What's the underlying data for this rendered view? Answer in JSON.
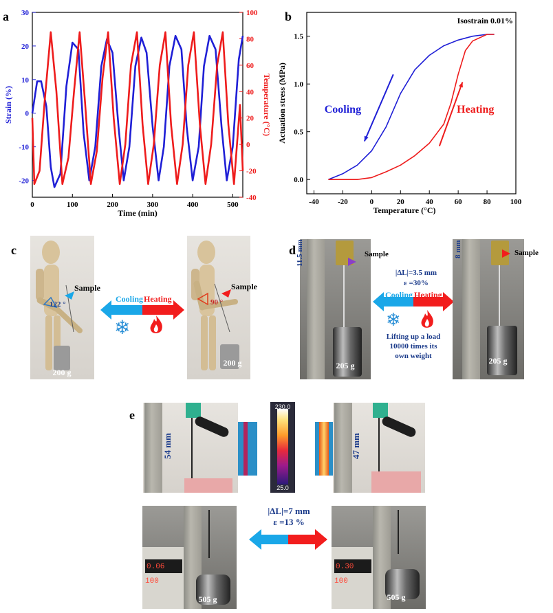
{
  "panels": {
    "a": {
      "label": "a"
    },
    "b": {
      "label": "b"
    },
    "c": {
      "label": "c",
      "sample": "Sample",
      "angle1": "122 °",
      "angle2": "90 °",
      "cooling": "Cooling",
      "heating": "Heating",
      "weight1": "200 g",
      "weight2": "200 g"
    },
    "d": {
      "label": "d",
      "sample1": "Sample",
      "sample2": "Sample",
      "length1": "11.5 mm",
      "length2": "8 mm",
      "delta": "|ΔL|=3.5 mm",
      "strain": "ε =30%",
      "cooling": "Cooling",
      "heating": "Heating",
      "note_line1": "Lifting up a load",
      "note_line2": "10000 times its",
      "note_line3": "own weight",
      "weight1": "205 g",
      "weight2": "205 g"
    },
    "e": {
      "label": "e",
      "length1": "54 mm",
      "length2": "47 mm",
      "scale_max": "230.0",
      "scale_min": "25.0",
      "delta": "|ΔL|=7 mm",
      "strain": "ε =13 %",
      "weight1": "505 g",
      "weight2": "505 g",
      "display1": "0.06 100",
      "display2": "0.30 100"
    }
  },
  "colors": {
    "blue": "#1f1fd6",
    "red": "#ee1c1c",
    "cool": "#1aa7e8",
    "heat": "#f21d1d",
    "navy": "#1a3a8a"
  },
  "chart_data": [
    {
      "type": "line",
      "title": "",
      "xlabel": "Time (min)",
      "ylabel": "Strain (%)",
      "ylabel_right": "Temperature (°C)",
      "xlim": [
        0,
        525
      ],
      "ylim": [
        -25,
        30
      ],
      "ylim_right": [
        -40,
        100
      ],
      "x_ticks": [
        0,
        100,
        200,
        300,
        400,
        500
      ],
      "y_ticks": [
        -20,
        -10,
        0,
        10,
        20,
        30
      ],
      "y_ticks_right": [
        -40,
        -20,
        0,
        20,
        40,
        60,
        80,
        100
      ],
      "series": [
        {
          "name": "",
          "axis": "left",
          "color": "#1f1fd6",
          "x": [
            0,
            12,
            22,
            35,
            46,
            55,
            70,
            85,
            100,
            115,
            128,
            142,
            157,
            172,
            186,
            200,
            215,
            228,
            242,
            257,
            272,
            285,
            300,
            315,
            328,
            342,
            357,
            372,
            385,
            400,
            415,
            428,
            442,
            457,
            472,
            485,
            500,
            515,
            525
          ],
          "y": [
            0,
            9.5,
            9.5,
            2,
            -16,
            -22,
            -18,
            8,
            21,
            19,
            -6,
            -20,
            -10,
            14,
            22,
            18,
            -4,
            -20,
            -10,
            14,
            22.5,
            18,
            -4,
            -20,
            -10,
            14,
            23,
            19,
            -4,
            -20,
            -10,
            14,
            23,
            19,
            -4,
            -20,
            -10,
            16,
            23
          ]
        },
        {
          "name": "",
          "axis": "right",
          "color": "#ee1c1c",
          "x": [
            0,
            5,
            18,
            30,
            46,
            60,
            75,
            90,
            104,
            118,
            132,
            146,
            161,
            175,
            189,
            203,
            218,
            232,
            246,
            261,
            275,
            289,
            303,
            318,
            332,
            346,
            361,
            375,
            389,
            403,
            418,
            432,
            446,
            461,
            475,
            489,
            503,
            518,
            525
          ],
          "y": [
            20,
            -30,
            -20,
            30,
            85,
            40,
            -30,
            -10,
            40,
            85,
            30,
            -30,
            -5,
            50,
            85,
            20,
            -30,
            0,
            60,
            85,
            15,
            -30,
            0,
            60,
            85,
            15,
            -30,
            0,
            60,
            85,
            15,
            -30,
            0,
            60,
            85,
            15,
            -30,
            30,
            -20
          ]
        }
      ]
    },
    {
      "type": "line",
      "title": "",
      "annotation": "Isostrain 0.01%",
      "xlabel": "Temperature (°C)",
      "ylabel": "Actuation stress (MPa)",
      "xlim": [
        -45,
        100
      ],
      "ylim": [
        -0.15,
        1.75
      ],
      "x_ticks": [
        -40,
        -20,
        0,
        20,
        40,
        60,
        80,
        100
      ],
      "y_ticks": [
        0.0,
        0.5,
        1.0,
        1.5
      ],
      "series": [
        {
          "name": "Cooling",
          "color": "#1f1fd6",
          "x": [
            -30,
            -20,
            -10,
            0,
            10,
            20,
            30,
            40,
            50,
            60,
            70,
            80,
            85
          ],
          "y": [
            0.0,
            0.06,
            0.15,
            0.3,
            0.55,
            0.9,
            1.15,
            1.3,
            1.4,
            1.46,
            1.5,
            1.52,
            1.52
          ]
        },
        {
          "name": "Heating",
          "color": "#ee1c1c",
          "x": [
            -30,
            -10,
            0,
            10,
            20,
            30,
            40,
            50,
            55,
            60,
            65,
            70,
            80,
            85
          ],
          "y": [
            0.0,
            0.0,
            0.02,
            0.08,
            0.15,
            0.25,
            0.38,
            0.58,
            0.8,
            1.1,
            1.35,
            1.45,
            1.52,
            1.52
          ]
        }
      ]
    }
  ]
}
